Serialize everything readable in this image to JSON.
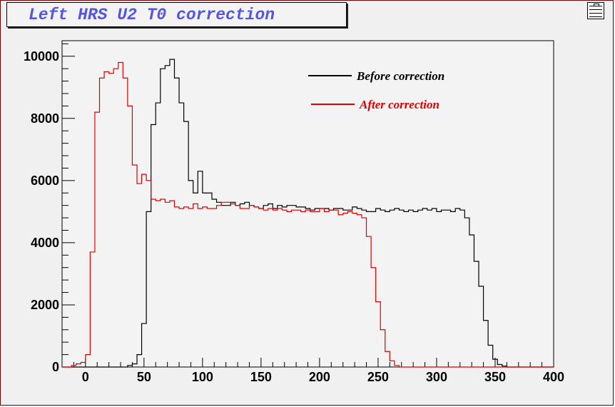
{
  "window": {
    "title": "Left HRS U2 T0 correction"
  },
  "chart_data": {
    "type": "line",
    "title": "Left HRS U2 T0 correction",
    "xlabel": "",
    "ylabel": "",
    "xlim": [
      -20,
      400
    ],
    "ylim": [
      0,
      10500
    ],
    "x_ticks": [
      0,
      50,
      100,
      150,
      200,
      250,
      300,
      350,
      400
    ],
    "y_ticks": [
      0,
      2000,
      4000,
      6000,
      8000,
      10000
    ],
    "grid": false,
    "legend_position": "top-right",
    "series": [
      {
        "name": "Before correction",
        "color": "#000000",
        "bin_edges_start": -20,
        "bin_width": 4,
        "values": [
          0,
          0,
          0,
          0,
          0,
          0,
          0,
          0,
          0,
          0,
          0,
          0,
          0,
          0,
          50,
          100,
          400,
          1400,
          5000,
          7800,
          8500,
          9600,
          9700,
          9900,
          9300,
          8500,
          7900,
          6000,
          5600,
          6300,
          5600,
          5600,
          5400,
          5300,
          5200,
          5200,
          5300,
          5200,
          5250,
          5300,
          5200,
          5150,
          5100,
          5200,
          5250,
          5100,
          5200,
          5150,
          5200,
          5200,
          5150,
          5150,
          5100,
          5050,
          5100,
          5100,
          5100,
          5050,
          5100,
          5100,
          5050,
          5050,
          5150,
          5100,
          5050,
          5000,
          5000,
          5100,
          5050,
          5000,
          5050,
          5100,
          5050,
          5000,
          5050,
          5000,
          5050,
          5100,
          5050,
          5100,
          5000,
          5050,
          5050,
          5000,
          5100,
          5050,
          4800,
          4250,
          3400,
          2600,
          1500,
          700,
          250,
          80,
          30,
          0,
          0,
          0,
          0,
          0,
          0,
          0,
          0,
          0,
          0,
          0
        ]
      },
      {
        "name": "After correction",
        "color": "#dd0000",
        "bin_edges_start": -20,
        "bin_width": 4,
        "values": [
          0,
          0,
          50,
          100,
          150,
          400,
          3700,
          8200,
          9300,
          9500,
          9450,
          9600,
          9800,
          9300,
          8400,
          6500,
          5900,
          6200,
          6000,
          5400,
          5350,
          5400,
          5300,
          5350,
          5150,
          5100,
          5150,
          5100,
          5250,
          5100,
          5150,
          5100,
          5100,
          5200,
          5300,
          5300,
          5250,
          5200,
          5100,
          5100,
          5200,
          5150,
          5100,
          5050,
          5100,
          5050,
          5100,
          5050,
          5000,
          5050,
          5050,
          5000,
          5050,
          5000,
          5000,
          5100,
          5000,
          5050,
          5050,
          4900,
          4950,
          5000,
          4950,
          4900,
          4800,
          4200,
          3200,
          2100,
          1200,
          500,
          200,
          50,
          0,
          0,
          0,
          0,
          0,
          0,
          0,
          0,
          0,
          0,
          0,
          0,
          0,
          0,
          0,
          0,
          0,
          0,
          0,
          0,
          0,
          0,
          0,
          0,
          0,
          0,
          0,
          0,
          0,
          0,
          0,
          0,
          0
        ]
      }
    ]
  }
}
